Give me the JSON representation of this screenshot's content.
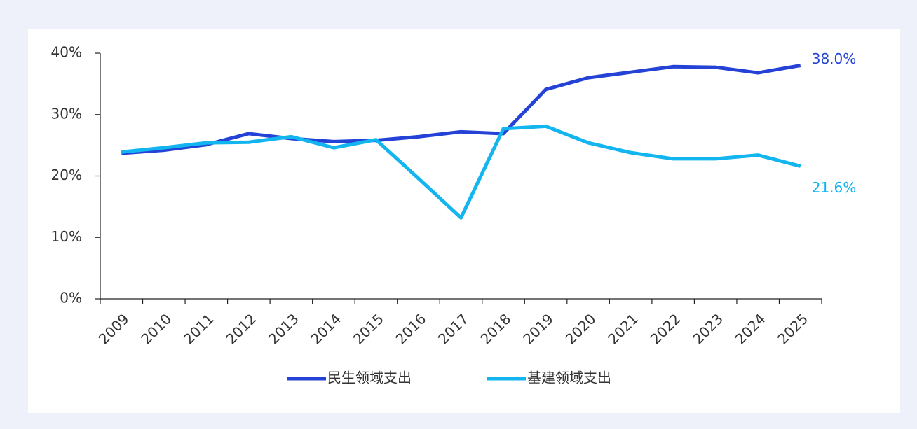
{
  "chart_data": {
    "type": "line",
    "categories": [
      "2009",
      "2010",
      "2011",
      "2012",
      "2013",
      "2014",
      "2015",
      "2016",
      "2017",
      "2018",
      "2019",
      "2020",
      "2021",
      "2022",
      "2023",
      "2024",
      "2025"
    ],
    "series": [
      {
        "name": "民生领域支出",
        "color": "#2443d6",
        "values": [
          23.7,
          24.2,
          25.1,
          26.9,
          26.1,
          25.6,
          25.8,
          26.4,
          27.2,
          26.9,
          34.1,
          36.0,
          36.9,
          37.8,
          37.7,
          36.8,
          38.0
        ],
        "value_labels": [
          null,
          null,
          null,
          null,
          null,
          null,
          null,
          null,
          null,
          null,
          null,
          null,
          null,
          null,
          null,
          null,
          "38.0%"
        ]
      },
      {
        "name": "基建领域支出",
        "color": "#12b5ef",
        "values": [
          23.9,
          24.6,
          25.4,
          25.5,
          26.4,
          24.6,
          25.9,
          19.6,
          13.2,
          27.7,
          28.1,
          25.4,
          23.8,
          22.8,
          22.8,
          23.4,
          21.6
        ],
        "value_labels": [
          null,
          null,
          null,
          null,
          null,
          null,
          null,
          null,
          null,
          null,
          null,
          null,
          null,
          null,
          null,
          null,
          "21.6%"
        ]
      }
    ],
    "ylim": [
      0,
      40
    ],
    "yticks": [
      {
        "value": 0,
        "label": "0%"
      },
      {
        "value": 10,
        "label": "10%"
      },
      {
        "value": 20,
        "label": "20%"
      },
      {
        "value": 30,
        "label": "30%"
      },
      {
        "value": 40,
        "label": "40%"
      }
    ],
    "legend": "bottom",
    "grid": false
  }
}
